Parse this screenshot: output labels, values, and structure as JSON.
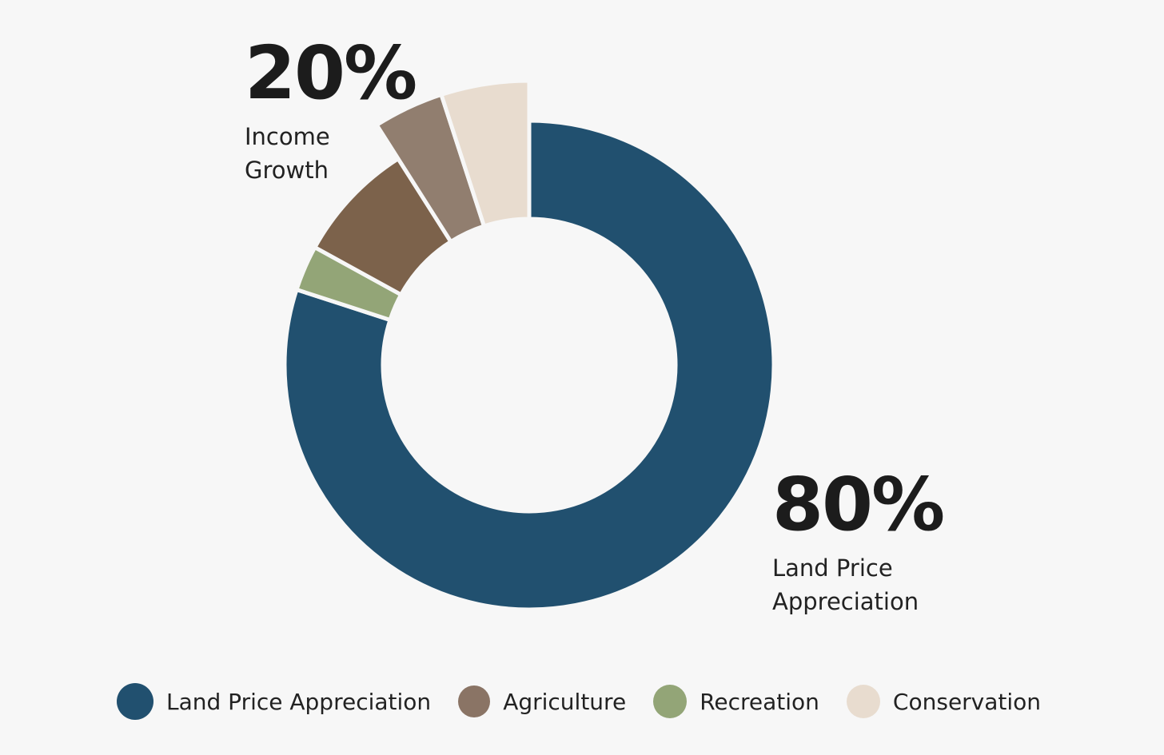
{
  "chart_data": {
    "type": "pie",
    "variant": "donut",
    "legend_position": "bottom",
    "slices": [
      {
        "label": "Land Price Appreciation",
        "value": 80,
        "color": "#21506f"
      },
      {
        "label": "Recreation",
        "value": 3,
        "color": "#93a577"
      },
      {
        "label": "Agriculture",
        "value": 8,
        "color": "#7c624b"
      },
      {
        "label": "Agriculture",
        "value": 4,
        "color": "#917e6f",
        "exploded": true
      },
      {
        "label": "Conservation",
        "value": 5,
        "color": "#e8dccf",
        "exploded": true
      }
    ],
    "callouts": {
      "income": {
        "value": "20%",
        "line1": "Income",
        "line2": "Growth"
      },
      "land": {
        "value": "80%",
        "line1": "Land Price",
        "line2": "Appreciation"
      }
    },
    "legend": [
      {
        "label": "Land Price Appreciation",
        "color": "#21506f"
      },
      {
        "label": "Agriculture",
        "color": "#8a7465"
      },
      {
        "label": "Recreation",
        "color": "#93a577"
      },
      {
        "label": "Conservation",
        "color": "#e8dccf"
      }
    ]
  }
}
